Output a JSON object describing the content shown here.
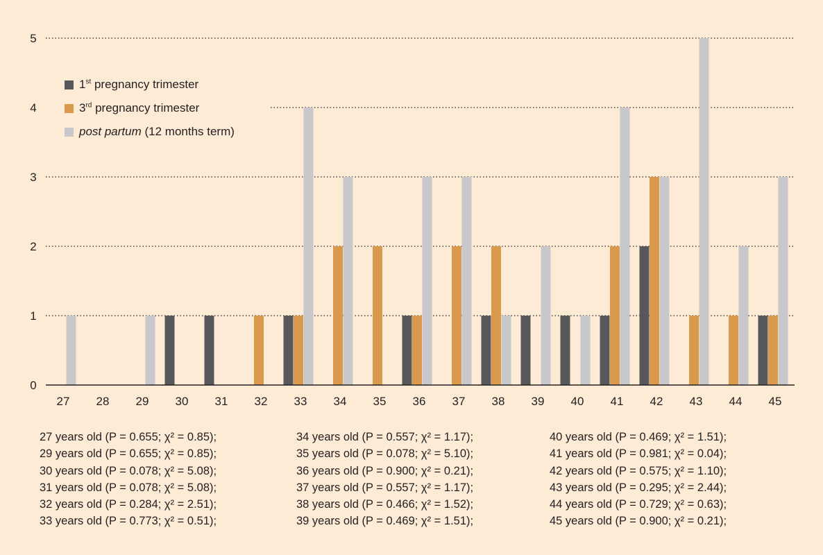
{
  "chart_data": {
    "type": "bar",
    "categories": [
      "27",
      "28",
      "29",
      "30",
      "31",
      "32",
      "33",
      "34",
      "35",
      "36",
      "37",
      "38",
      "39",
      "40",
      "41",
      "42",
      "43",
      "44",
      "45"
    ],
    "series": [
      {
        "name": "1st pregnancy trimester",
        "name_base": "1",
        "name_sup": "st",
        "name_rest": " pregnancy trimester",
        "name_italic": "",
        "color": "#58585a",
        "values": [
          0,
          0,
          0,
          1,
          1,
          0,
          1,
          0,
          0,
          1,
          0,
          1,
          1,
          1,
          1,
          2,
          0,
          0,
          1
        ]
      },
      {
        "name": "3rd pregnancy trimester",
        "name_base": "3",
        "name_sup": "rd",
        "name_rest": " pregnancy trimester",
        "name_italic": "",
        "color": "#d99a4e",
        "values": [
          0,
          0,
          0,
          0,
          0,
          1,
          1,
          2,
          2,
          1,
          2,
          2,
          0,
          0,
          2,
          3,
          1,
          1,
          1
        ]
      },
      {
        "name": "post partum (12 months term)",
        "name_base": "",
        "name_sup": "",
        "name_italic": "post partum",
        "name_rest": " (12 months term)",
        "color": "#c8c8ca",
        "values": [
          1,
          0,
          1,
          0,
          0,
          0,
          4,
          3,
          0,
          3,
          3,
          1,
          2,
          1,
          4,
          3,
          5,
          2,
          3
        ]
      }
    ],
    "ylim": [
      0,
      5
    ],
    "yticks": [
      "0",
      "1",
      "2",
      "3",
      "4",
      "5"
    ],
    "grid": "dotted horizontal",
    "legend_position": "top-left",
    "title": "",
    "xlabel": "",
    "ylabel": ""
  },
  "stats": {
    "columns": [
      [
        "27 years old (P = 0.655; χ² = 0.85);",
        "29 years old (P = 0.655; χ² = 0.85);",
        "30 years old (P = 0.078; χ² = 5.08);",
        "31 years old (P = 0.078; χ² = 5.08);",
        "32 years old (P = 0.284; χ² = 2.51);",
        "33 years old (P = 0.773; χ² = 0.51);"
      ],
      [
        "34 years old (P = 0.557; χ² = 1.17);",
        "35 years old (P = 0.078; χ² = 5.10);",
        "36 years old (P = 0.900; χ² = 0.21);",
        "37 years old (P = 0.557; χ² = 1.17);",
        "38 years old (P = 0.466; χ² = 1.52);",
        "39 years old (P = 0.469; χ² = 1.51);"
      ],
      [
        "40 years old (P = 0.469; χ² = 1.51);",
        "41 years old (P = 0.981; χ² = 0.04);",
        "42 years old (P = 0.575; χ² = 1.10);",
        "43 years old (P = 0.295; χ² = 2.44);",
        "44 years old (P = 0.729; χ² = 0.63);",
        "45 years old (P = 0.900; χ² = 0.21);"
      ]
    ]
  }
}
